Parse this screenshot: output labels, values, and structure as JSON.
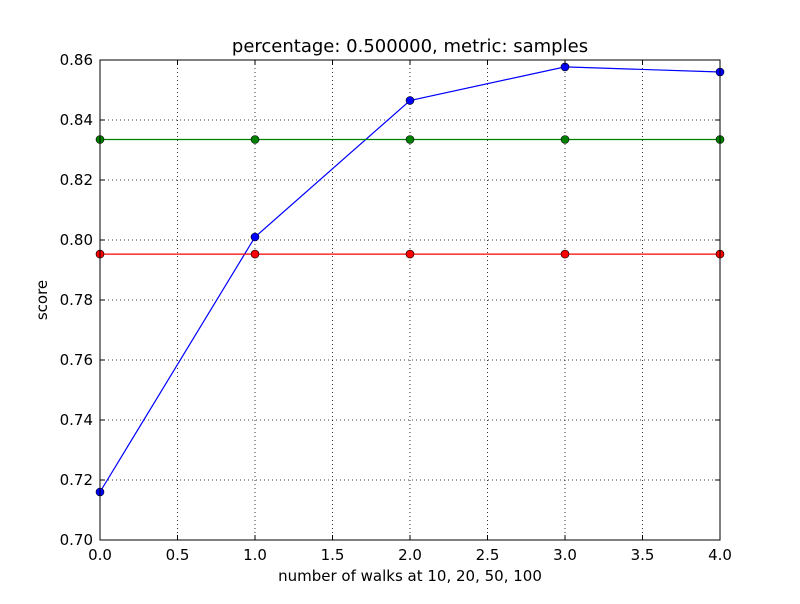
{
  "chart_data": {
    "type": "line",
    "title": "percentage: 0.500000, metric: samples",
    "xlabel": "number of walks at 10, 20, 50, 100",
    "ylabel": "score",
    "xlim": [
      0.0,
      4.0
    ],
    "ylim": [
      0.7,
      0.86
    ],
    "x_ticks": [
      "0.0",
      "0.5",
      "1.0",
      "1.5",
      "2.0",
      "2.5",
      "3.0",
      "3.5",
      "4.0"
    ],
    "y_ticks": [
      "0.70",
      "0.72",
      "0.74",
      "0.76",
      "0.78",
      "0.80",
      "0.82",
      "0.84",
      "0.86"
    ],
    "grid": true,
    "x": [
      0,
      1,
      2,
      3,
      4
    ],
    "series": [
      {
        "color": "#0000ff",
        "values": [
          0.716,
          0.801,
          0.8465,
          0.8577,
          0.856
        ]
      },
      {
        "color": "#008000",
        "values": [
          0.8335,
          0.8335,
          0.8335,
          0.8335,
          0.8335
        ]
      },
      {
        "color": "#ff0000",
        "values": [
          0.7953,
          0.7953,
          0.7953,
          0.7953,
          0.7953
        ]
      }
    ]
  }
}
